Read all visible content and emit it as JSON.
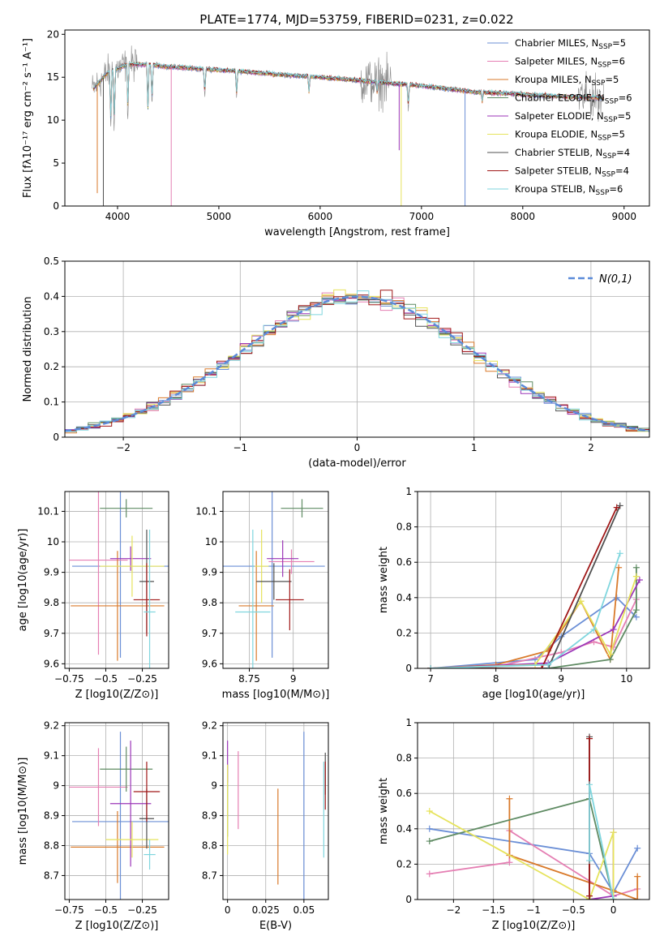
{
  "figure_title": "PLATE=1774, MJD=53759, FIBERID=0231, z=0.022",
  "colors": {
    "Chabrier MILES": "#6b8fd6",
    "Salpeter MILES": "#e57fb3",
    "Kroupa MILES": "#d97a2b",
    "Chabrier ELODIE": "#5f8b63",
    "Salpeter ELODIE": "#9b36b8",
    "Kroupa ELODIE": "#e6e35c",
    "Chabrier STELIB": "#505050",
    "Salpeter STELIB": "#a01818",
    "Kroupa STELIB": "#7fd6de"
  },
  "chart_data": [
    {
      "id": "spectrum",
      "type": "line",
      "xlabel": "wavelength [Angstrom, rest frame]",
      "ylabel": "Flux [fλ10⁻¹⁷ erg cm⁻² s⁻¹ A⁻¹]",
      "xlim": [
        3480,
        9250
      ],
      "ylim": [
        0,
        20.5
      ],
      "xticks": [
        4000,
        5000,
        6000,
        7000,
        8000,
        9000
      ],
      "yticks": [
        0,
        5,
        10,
        15,
        20
      ],
      "legend_position": "top-right",
      "legend": [
        "Chabrier MILES, N_SSP=5",
        "Salpeter MILES, N_SSP=6",
        "Kroupa MILES, N_SSP=5",
        "Chabrier ELODIE, N_SSP=6",
        "Salpeter ELODIE, N_SSP=5",
        "Kroupa ELODIE, N_SSP=5",
        "Chabrier STELIB, N_SSP=4",
        "Salpeter STELIB, N_SSP=4",
        "Kroupa STELIB, N_SSP=6"
      ],
      "observed_color": "#8a8a8a",
      "continuum": [
        [
          3750,
          13.5
        ],
        [
          3900,
          15.5
        ],
        [
          4100,
          16.5
        ],
        [
          4300,
          16.5
        ],
        [
          4500,
          16.2
        ],
        [
          4800,
          16.0
        ],
        [
          5200,
          15.7
        ],
        [
          5600,
          15.3
        ],
        [
          6000,
          15.0
        ],
        [
          6500,
          14.5
        ],
        [
          7000,
          14.0
        ],
        [
          7500,
          13.3
        ],
        [
          8000,
          13.0
        ],
        [
          8500,
          12.7
        ],
        [
          8800,
          12.6
        ]
      ],
      "absorption_lines": [
        [
          3933,
          9.0
        ],
        [
          3968,
          8.5
        ],
        [
          4102,
          11.0
        ],
        [
          4300,
          10.5
        ],
        [
          4340,
          11.5
        ],
        [
          4861,
          12.5
        ],
        [
          5175,
          12.5
        ],
        [
          5890,
          13.0
        ],
        [
          6563,
          13.0
        ],
        [
          6870,
          11.0
        ],
        [
          7600,
          12.0
        ]
      ],
      "model_spikes": [
        [
          3800,
          1.5
        ],
        [
          3860,
          0.0
        ],
        [
          4530,
          0.0
        ],
        [
          6800,
          0.0
        ],
        [
          7430,
          0.0
        ],
        [
          6780,
          6.5
        ]
      ],
      "noise_region": [
        [
          3750,
          4200,
          2.5
        ],
        [
          6400,
          6700,
          3.5
        ],
        [
          8550,
          8800,
          3.0
        ]
      ]
    },
    {
      "id": "residual_histogram",
      "type": "bar",
      "xlabel": "(data-model)/error",
      "ylabel": "Normed distribution",
      "xlim": [
        -2.5,
        2.5
      ],
      "ylim": [
        0,
        0.5
      ],
      "xticks": [
        -2,
        -1,
        0,
        1,
        2
      ],
      "yticks": [
        0,
        0.1,
        0.2,
        0.3,
        0.4,
        0.5
      ],
      "legend": [
        "N(0,1)"
      ],
      "legend_position": "top-right",
      "bin_width": 0.1,
      "bin_start": -2.5,
      "gaussian": {
        "mean": 0,
        "sigma": 1,
        "color": "#5b8bd9"
      },
      "series_counts_jitter": 0.045
    },
    {
      "id": "age_vs_Z",
      "type": "scatter",
      "xlabel": "Z [log10(Z/Z⊙)]",
      "ylabel": "age  [log10(age/yr)]",
      "xlim": [
        -0.78,
        -0.07
      ],
      "ylim": [
        9.585,
        10.165
      ],
      "xticks": [
        -0.75,
        -0.5,
        -0.25
      ],
      "yticks": [
        9.6,
        9.7,
        9.8,
        9.9,
        10.0,
        10.1
      ],
      "points": [
        {
          "series": "Chabrier MILES",
          "x": -0.4,
          "xerr": 0.33,
          "y": 9.92,
          "yerr": 0.3
        },
        {
          "series": "Salpeter MILES",
          "x": -0.55,
          "xerr": 0.2,
          "y": 9.94,
          "yerr": 0.31
        },
        {
          "series": "Kroupa MILES",
          "x": -0.42,
          "xerr": 0.32,
          "y": 9.79,
          "yerr": 0.18
        },
        {
          "series": "Chabrier ELODIE",
          "x": -0.36,
          "xerr": 0.18,
          "y": 10.11,
          "yerr": 0.03
        },
        {
          "series": "Salpeter ELODIE",
          "x": -0.33,
          "xerr": 0.14,
          "y": 9.945,
          "yerr": 0.04
        },
        {
          "series": "Kroupa ELODIE",
          "x": -0.32,
          "xerr": 0.22,
          "y": 9.92,
          "yerr": 0.1
        },
        {
          "series": "Chabrier STELIB",
          "x": -0.22,
          "xerr": 0.05,
          "y": 9.87,
          "yerr": 0.17
        },
        {
          "series": "Salpeter STELIB",
          "x": -0.22,
          "xerr": 0.09,
          "y": 9.81,
          "yerr": 0.12
        },
        {
          "series": "Kroupa STELIB",
          "x": -0.2,
          "xerr": 0.04,
          "y": 9.77,
          "yerr": 0.27
        }
      ]
    },
    {
      "id": "age_vs_mass",
      "type": "scatter",
      "xlabel": "mass [log10(M/M⊙)]",
      "ylabel": "",
      "xlim": [
        8.6,
        9.2
      ],
      "ylim": [
        9.585,
        10.165
      ],
      "xticks": [
        8.75,
        9.0
      ],
      "yticks": [
        9.6,
        9.7,
        9.8,
        9.9,
        10.0,
        10.1
      ],
      "points": [
        {
          "series": "Chabrier MILES",
          "x": 8.88,
          "xerr": 0.3,
          "y": 9.92,
          "yerr": 0.3
        },
        {
          "series": "Salpeter MILES",
          "x": 8.99,
          "xerr": 0.13,
          "y": 9.935,
          "yerr": 0.04
        },
        {
          "series": "Kroupa MILES",
          "x": 8.79,
          "xerr": 0.1,
          "y": 9.79,
          "yerr": 0.18
        },
        {
          "series": "Chabrier ELODIE",
          "x": 9.05,
          "xerr": 0.12,
          "y": 10.11,
          "yerr": 0.03
        },
        {
          "series": "Salpeter ELODIE",
          "x": 8.94,
          "xerr": 0.09,
          "y": 9.945,
          "yerr": 0.06
        },
        {
          "series": "Kroupa ELODIE",
          "x": 8.82,
          "xerr": 0.04,
          "y": 9.92,
          "yerr": 0.12
        },
        {
          "series": "Chabrier STELIB",
          "x": 8.89,
          "xerr": 0.1,
          "y": 9.87,
          "yerr": 0.06
        },
        {
          "series": "Salpeter STELIB",
          "x": 8.98,
          "xerr": 0.08,
          "y": 9.81,
          "yerr": 0.1
        },
        {
          "series": "Kroupa STELIB",
          "x": 8.77,
          "xerr": 0.1,
          "y": 9.77,
          "yerr": 0.27
        }
      ]
    },
    {
      "id": "mass_weight_vs_age",
      "type": "line",
      "xlabel": "age  [log10(age/yr)]",
      "ylabel": "mass weight",
      "xlim": [
        6.8,
        10.35
      ],
      "ylim": [
        0,
        1
      ],
      "xticks": [
        7,
        8,
        9,
        10
      ],
      "yticks": [
        0,
        0.2,
        0.4,
        0.6,
        0.8,
        1.0
      ],
      "series": [
        {
          "name": "Chabrier MILES",
          "x": [
            7.0,
            8.6,
            9.0,
            9.85,
            10.15
          ],
          "y": [
            0.0,
            0.05,
            0.18,
            0.4,
            0.29
          ]
        },
        {
          "name": "Salpeter MILES",
          "x": [
            7.0,
            8.0,
            9.0,
            9.5,
            9.8,
            10.15
          ],
          "y": [
            0.0,
            0.01,
            0.09,
            0.15,
            0.12,
            0.39
          ]
        },
        {
          "name": "Kroupa MILES",
          "x": [
            7.0,
            8.0,
            8.8,
            9.3,
            9.75,
            9.88
          ],
          "y": [
            0.0,
            0.02,
            0.1,
            0.38,
            0.05,
            0.57
          ]
        },
        {
          "name": "Chabrier ELODIE",
          "x": [
            7.0,
            8.8,
            9.75,
            10.15,
            10.15
          ],
          "y": [
            0.0,
            0.0,
            0.05,
            0.33,
            0.57
          ]
        },
        {
          "name": "Salpeter ELODIE",
          "x": [
            7.0,
            8.8,
            9.8,
            10.2
          ],
          "y": [
            0.0,
            0.03,
            0.22,
            0.5
          ]
        },
        {
          "name": "Kroupa ELODIE",
          "x": [
            7.0,
            8.6,
            9.3,
            9.75,
            10.15
          ],
          "y": [
            0.0,
            0.02,
            0.38,
            0.08,
            0.52
          ]
        },
        {
          "name": "Chabrier STELIB",
          "x": [
            7.0,
            8.8,
            9.9
          ],
          "y": [
            0.0,
            0.0,
            0.92
          ]
        },
        {
          "name": "Salpeter STELIB",
          "x": [
            7.0,
            8.7,
            9.85
          ],
          "y": [
            0.0,
            0.0,
            0.91
          ]
        },
        {
          "name": "Kroupa STELIB",
          "x": [
            7.0,
            8.8,
            9.5,
            9.9
          ],
          "y": [
            0.0,
            0.02,
            0.22,
            0.65
          ]
        }
      ]
    },
    {
      "id": "mass_vs_Z",
      "type": "scatter",
      "xlabel": "Z [log10(Z/Z⊙)]",
      "ylabel": "mass [log10(M/M⊙)]",
      "xlim": [
        -0.78,
        -0.07
      ],
      "ylim": [
        8.62,
        9.21
      ],
      "xticks": [
        -0.75,
        -0.5,
        -0.25
      ],
      "yticks": [
        8.7,
        8.8,
        8.9,
        9.0,
        9.1,
        9.2
      ],
      "points": [
        {
          "series": "Chabrier MILES",
          "x": -0.4,
          "xerr": 0.33,
          "y": 8.88,
          "yerr": 0.3
        },
        {
          "series": "Salpeter MILES",
          "x": -0.55,
          "xerr": 0.2,
          "y": 8.995,
          "yerr": 0.13
        },
        {
          "series": "Kroupa MILES",
          "x": -0.42,
          "xerr": 0.32,
          "y": 8.795,
          "yerr": 0.12
        },
        {
          "series": "Chabrier ELODIE",
          "x": -0.36,
          "xerr": 0.18,
          "y": 9.055,
          "yerr": 0.075
        },
        {
          "series": "Salpeter ELODIE",
          "x": -0.33,
          "xerr": 0.14,
          "y": 8.94,
          "yerr": 0.21
        },
        {
          "series": "Kroupa ELODIE",
          "x": -0.32,
          "xerr": 0.18,
          "y": 8.82,
          "yerr": 0.06
        },
        {
          "series": "Chabrier STELIB",
          "x": -0.22,
          "xerr": 0.05,
          "y": 8.89,
          "yerr": 0.1
        },
        {
          "series": "Salpeter STELIB",
          "x": -0.22,
          "xerr": 0.09,
          "y": 8.98,
          "yerr": 0.1
        },
        {
          "series": "Kroupa STELIB",
          "x": -0.2,
          "xerr": 0.04,
          "y": 8.77,
          "yerr": 0.05
        }
      ]
    },
    {
      "id": "mass_vs_ebv",
      "type": "scatter",
      "xlabel": "E(B-V)",
      "ylabel": "",
      "xlim": [
        -0.003,
        0.066
      ],
      "ylim": [
        8.62,
        9.21
      ],
      "xticks": [
        0.0,
        0.025,
        0.05
      ],
      "yticks": [
        8.7,
        8.8,
        8.9,
        9.0,
        9.1,
        9.2
      ],
      "points": [
        {
          "series": "Chabrier MILES",
          "x": 0.05,
          "xerr": 0,
          "y": 8.9,
          "yerr": 0.28
        },
        {
          "series": "Salpeter MILES",
          "x": 0.007,
          "xerr": 0,
          "y": 8.985,
          "yerr": 0.13
        },
        {
          "series": "Kroupa MILES",
          "x": 0.033,
          "xerr": 0,
          "y": 8.83,
          "yerr": 0.16
        },
        {
          "series": "Chabrier ELODIE",
          "x": 0.0,
          "xerr": 0,
          "y": 8.95,
          "yerr": 0.12
        },
        {
          "series": "Salpeter ELODIE",
          "x": 0.0,
          "xerr": 0,
          "y": 9.08,
          "yerr": 0.07
        },
        {
          "series": "Kroupa ELODIE",
          "x": 0.0,
          "xerr": 0,
          "y": 8.92,
          "yerr": 0.15
        },
        {
          "series": "Chabrier STELIB",
          "x": 0.064,
          "xerr": 0,
          "y": 9.04,
          "yerr": 0.07
        },
        {
          "series": "Salpeter STELIB",
          "x": 0.064,
          "xerr": 0,
          "y": 9.0,
          "yerr": 0.08
        },
        {
          "series": "Kroupa STELIB",
          "x": 0.063,
          "xerr": 0,
          "y": 8.92,
          "yerr": 0.16
        }
      ]
    },
    {
      "id": "mass_weight_vs_Z",
      "type": "line",
      "xlabel": "Z [log10(Z/Z⊙)]",
      "ylabel": "mass weight",
      "xlim": [
        -2.45,
        0.45
      ],
      "ylim": [
        0,
        1
      ],
      "xticks": [
        -2.0,
        -1.5,
        -1.0,
        -0.5,
        0.0
      ],
      "yticks": [
        0,
        0.2,
        0.4,
        0.6,
        0.8,
        1.0
      ],
      "series": [
        {
          "name": "Chabrier MILES",
          "x": [
            -2.3,
            -0.3,
            0.0,
            0.3
          ],
          "y": [
            0.4,
            0.26,
            0.04,
            0.29
          ]
        },
        {
          "name": "Salpeter MILES",
          "x": [
            -2.3,
            -1.3,
            -1.3,
            0.0,
            0.3
          ],
          "y": [
            0.145,
            0.21,
            0.39,
            0.02,
            0.06
          ]
        },
        {
          "name": "Kroupa MILES",
          "x": [
            -1.3,
            -1.3,
            0.0,
            0.3,
            0.3
          ],
          "y": [
            0.57,
            0.25,
            0.05,
            0.0,
            0.13
          ]
        },
        {
          "name": "Chabrier ELODIE",
          "x": [
            -2.3,
            -0.3,
            0.0
          ],
          "y": [
            0.33,
            0.57,
            0.0
          ]
        },
        {
          "name": "Salpeter ELODIE",
          "x": [
            -0.3,
            0.0,
            0.0
          ],
          "y": [
            0.0,
            0.02,
            0.38
          ]
        },
        {
          "name": "Kroupa ELODIE",
          "x": [
            -2.3,
            -0.3,
            0.0,
            0.0
          ],
          "y": [
            0.5,
            0.0,
            0.38,
            0.0
          ]
        },
        {
          "name": "Chabrier STELIB",
          "x": [
            -0.3,
            -0.3
          ],
          "y": [
            0.0,
            0.92
          ]
        },
        {
          "name": "Salpeter STELIB",
          "x": [
            -0.3,
            -0.3
          ],
          "y": [
            0.02,
            0.91
          ]
        },
        {
          "name": "Kroupa STELIB",
          "x": [
            -0.3,
            -0.3,
            0.0
          ],
          "y": [
            0.22,
            0.65,
            0.0
          ]
        }
      ]
    }
  ]
}
